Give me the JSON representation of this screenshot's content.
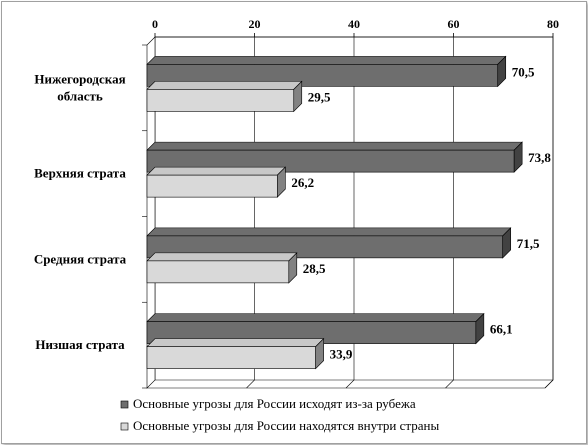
{
  "chart_data": {
    "type": "bar",
    "orientation": "horizontal",
    "style": "3d",
    "xlim": [
      0,
      80
    ],
    "x_ticks": [
      "0",
      "20",
      "40",
      "60",
      "80"
    ],
    "categories": [
      "Нижегородская область",
      "Верхняя страта",
      "Средняя страта",
      "Низшая страта"
    ],
    "category_lines": [
      [
        "Нижегородская",
        "область"
      ],
      [
        "Верхняя страта"
      ],
      [
        "Средняя страта"
      ],
      [
        "Низшая страта"
      ]
    ],
    "series": [
      {
        "name": "Основные угрозы для России исходят из-за рубежа",
        "color": "#6e6e6e",
        "values": [
          70.5,
          73.8,
          71.5,
          66.1
        ],
        "labels": [
          "70,5",
          "73,8",
          "71,5",
          "66,1"
        ]
      },
      {
        "name": "Основные угрозы для России находятся внутри страны",
        "color": "#d9d9d9",
        "values": [
          29.5,
          26.2,
          28.5,
          33.9
        ],
        "labels": [
          "29,5",
          "26,2",
          "28,5",
          "33,9"
        ]
      }
    ],
    "legend_position": "bottom",
    "grid": true
  }
}
